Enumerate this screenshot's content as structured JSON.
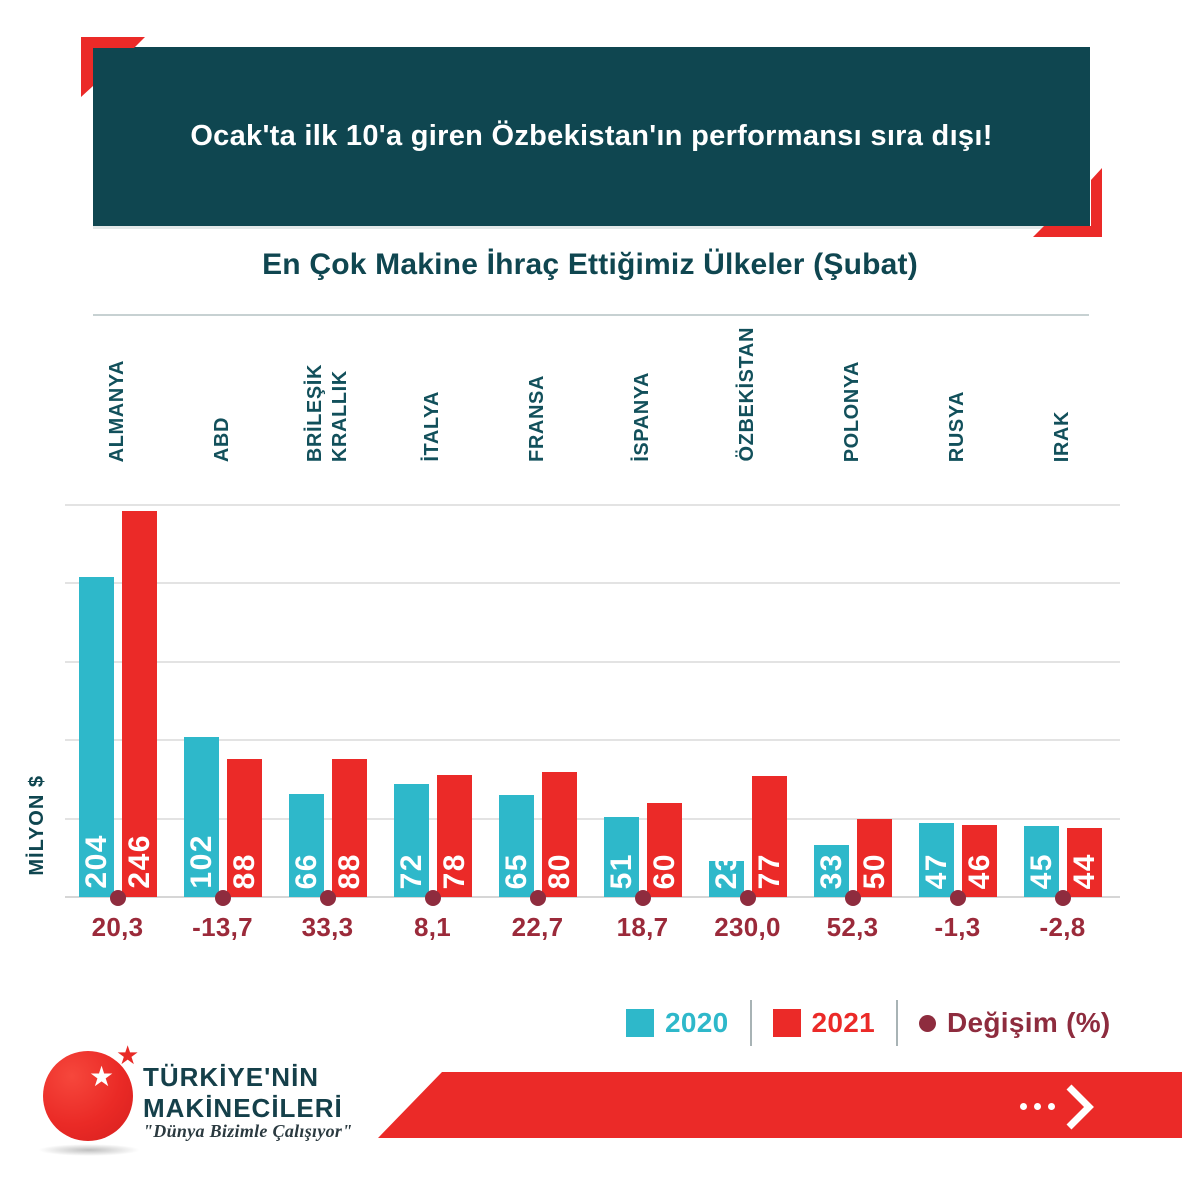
{
  "header": {
    "title": "Ocak'ta ilk 10'a giren Özbekistan'ın performansı sıra dışı!"
  },
  "chart": {
    "title": "En Çok Makine İhraç Ettiğimiz Ülkeler (Şubat)",
    "ylabel": "MİLYON $"
  },
  "chart_data": {
    "type": "bar",
    "categories": [
      "ALMANYA",
      "ABD",
      "BRİLEŞİK\nKRALLIK",
      "İTALYA",
      "FRANSA",
      "İSPANYA",
      "ÖZBEKİSTAN",
      "POLONYA",
      "RUSYA",
      "IRAK"
    ],
    "series": [
      {
        "name": "2020",
        "color": "#2eb8ca",
        "values": [
          204,
          102,
          66,
          72,
          65,
          51,
          23,
          33,
          47,
          45
        ]
      },
      {
        "name": "2021",
        "color": "#eb2a28",
        "values": [
          246,
          88,
          88,
          78,
          80,
          60,
          77,
          50,
          46,
          44
        ]
      }
    ],
    "change": {
      "name": "Değişim (%)",
      "color": "#8e2c3e",
      "values": [
        "20,3",
        "-13,7",
        "33,3",
        "8,1",
        "22,7",
        "18,7",
        "230,0",
        "52,3",
        "-1,3",
        "-2,8"
      ]
    },
    "ylabel": "MİLYON $",
    "ylim": [
      0,
      250
    ],
    "grid_step": 50,
    "grid": "on",
    "legend_position": "bottom"
  },
  "legend": {
    "items": [
      {
        "label": "2020",
        "color": "#2eb8ca",
        "swatch": "square"
      },
      {
        "label": "2021",
        "color": "#eb2a28",
        "swatch": "square"
      },
      {
        "label": "Değişim (%)",
        "color": "#8e2c3e",
        "swatch": "dot"
      }
    ]
  },
  "footer": {
    "brand_line1": "TÜRKİYE'NİN",
    "brand_line2": "MAKİNECİLERİ",
    "tagline": "\"Dünya Bizimle Çalışıyor\"",
    "arrow_icon": "ellipsis-chevron-right"
  },
  "colors": {
    "header_bg": "#0f4650",
    "accent_red": "#eb2a28",
    "cyan_2020": "#2eb8ca",
    "red_2021": "#eb2a28",
    "maroon_change": "#8e2c3e",
    "grid": "#e3e3e3"
  }
}
